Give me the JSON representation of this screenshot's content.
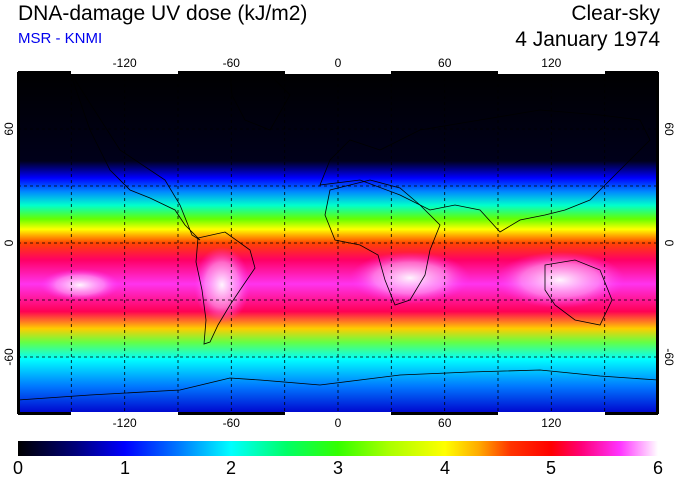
{
  "header": {
    "title": "DNA-damage UV dose (kJ/m2)",
    "subtitle": "MSR - KNMI",
    "sky_condition": "Clear-sky",
    "date": "4 January 1974"
  },
  "map": {
    "lon_range": [
      -180,
      180
    ],
    "lat_range": [
      -90,
      90
    ],
    "lon_ticks": [
      -120,
      -60,
      0,
      60,
      120
    ],
    "lon_tick_labels": [
      "-120",
      "-60",
      "0",
      "60",
      "120"
    ],
    "lat_ticks": [
      60,
      0,
      -60
    ],
    "lat_tick_labels": [
      "60",
      "0",
      "-60"
    ],
    "gridlines": true,
    "coastlines": true,
    "max_dose_region": "southern tropics and subtropics (southern hemisphere summer)"
  },
  "colorbar": {
    "min": 0,
    "max": 6,
    "labels": [
      "0",
      "1",
      "2",
      "3",
      "4",
      "5",
      "6"
    ],
    "colors": [
      "#000000",
      "#0000ff",
      "#00ffff",
      "#33ff00",
      "#ffff00",
      "#ff0000",
      "#ff33ff",
      "#ffffff"
    ]
  }
}
